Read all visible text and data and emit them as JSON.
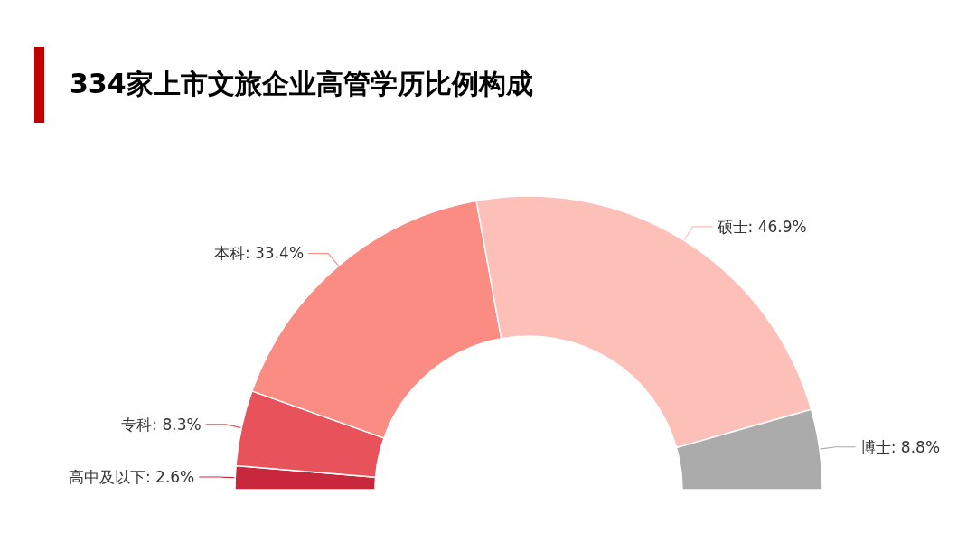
{
  "chart_data": {
    "type": "donut",
    "title": "334家上市文旅企业高管学历比例构成",
    "categories": [
      "高中及以下",
      "专科",
      "本科",
      "硕士",
      "博士"
    ],
    "values": [
      2.6,
      8.3,
      33.4,
      46.9,
      8.8
    ],
    "value_labels": [
      "2.6%",
      "8.3%",
      "33.4%",
      "46.9%",
      "8.8%"
    ],
    "colors": [
      "#c8283c",
      "#e8525a",
      "#fa8c84",
      "#fcc0b8",
      "#ababab"
    ],
    "legend": false
  }
}
